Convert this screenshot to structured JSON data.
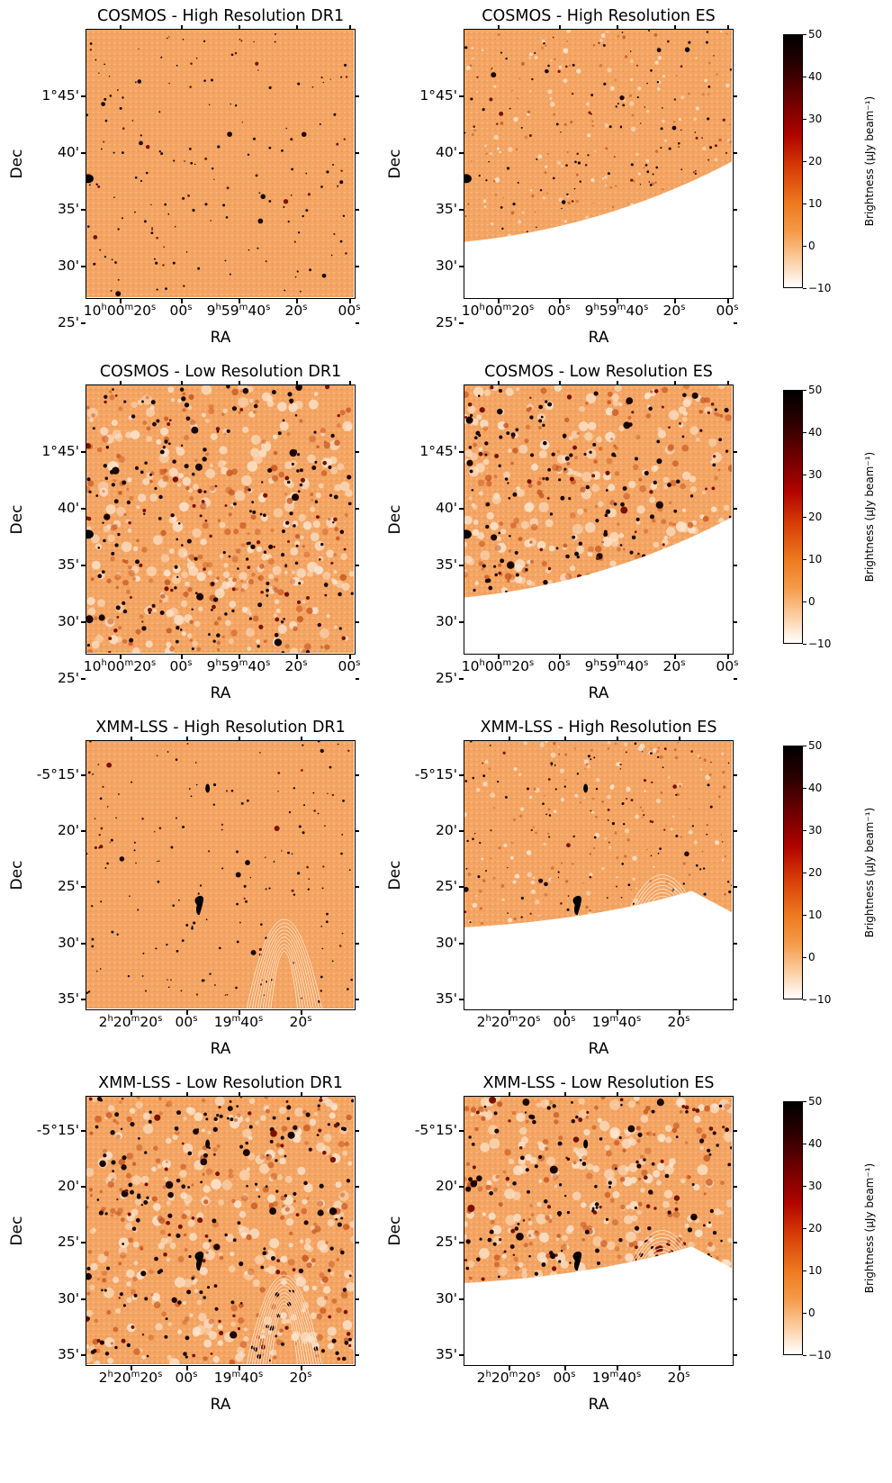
{
  "rows": [
    {
      "panels": [
        {
          "title": "COSMOS - High Resolution DR1",
          "yticks": [
            "1°45'",
            "40'",
            "35'",
            "30'",
            "25'"
          ],
          "xtick_parts": [
            [
              "10",
              "h",
              "00",
              "m",
              "20",
              "s"
            ],
            [
              "00",
              "s"
            ],
            [
              "9",
              "h",
              "59",
              "m",
              "40",
              "s"
            ],
            [
              "20",
              "s"
            ],
            [
              "00",
              "s"
            ]
          ],
          "xlabel": "RA",
          "ylabel": "Dec",
          "coverage": "full",
          "resolution": "high"
        },
        {
          "title": "COSMOS - High Resolution ES",
          "yticks": [
            "1°45'",
            "40'",
            "35'",
            "30'",
            "25'"
          ],
          "xtick_parts": [
            [
              "10",
              "h",
              "00",
              "m",
              "20",
              "s"
            ],
            [
              "00",
              "s"
            ],
            [
              "9",
              "h",
              "59",
              "m",
              "40",
              "s"
            ],
            [
              "20",
              "s"
            ],
            [
              "00",
              "s"
            ]
          ],
          "xlabel": "RA",
          "ylabel": "Dec",
          "coverage": "curved-bottom",
          "resolution": "high"
        }
      ],
      "colorbar": {
        "ticks": [
          "50",
          "40",
          "30",
          "20",
          "10",
          "0",
          "−10"
        ],
        "label": "Brightness (μJy beam⁻¹)"
      }
    },
    {
      "panels": [
        {
          "title": "COSMOS - Low Resolution DR1",
          "yticks": [
            "1°45'",
            "40'",
            "35'",
            "30'",
            "25'"
          ],
          "xtick_parts": [
            [
              "10",
              "h",
              "00",
              "m",
              "20",
              "s"
            ],
            [
              "00",
              "s"
            ],
            [
              "9",
              "h",
              "59",
              "m",
              "40",
              "s"
            ],
            [
              "20",
              "s"
            ],
            [
              "00",
              "s"
            ]
          ],
          "xlabel": "RA",
          "ylabel": "Dec",
          "coverage": "full",
          "resolution": "low"
        },
        {
          "title": "COSMOS - Low Resolution ES",
          "yticks": [
            "1°45'",
            "40'",
            "35'",
            "30'",
            "25'"
          ],
          "xtick_parts": [
            [
              "10",
              "h",
              "00",
              "m",
              "20",
              "s"
            ],
            [
              "00",
              "s"
            ],
            [
              "9",
              "h",
              "59",
              "m",
              "40",
              "s"
            ],
            [
              "20",
              "s"
            ],
            [
              "00",
              "s"
            ]
          ],
          "xlabel": "RA",
          "ylabel": "Dec",
          "coverage": "curved-bottom",
          "resolution": "low"
        }
      ],
      "colorbar": {
        "ticks": [
          "50",
          "40",
          "30",
          "20",
          "10",
          "0",
          "−10"
        ],
        "label": "Brightness (μJy beam⁻¹)"
      }
    },
    {
      "panels": [
        {
          "title": "XMM-LSS - High Resolution DR1",
          "yticks": [
            "-5°15'",
            "20'",
            "25'",
            "30'",
            "35'"
          ],
          "xtick_parts": [
            [
              "2",
              "h",
              "20",
              "m",
              "20",
              "s"
            ],
            [
              "00",
              "s"
            ],
            [
              "19",
              "m",
              "40",
              "s"
            ],
            [
              "20",
              "s"
            ]
          ],
          "xlabel": "RA",
          "ylabel": "Dec",
          "coverage": "full",
          "resolution": "high"
        },
        {
          "title": "XMM-LSS - High Resolution ES",
          "yticks": [
            "-5°15'",
            "20'",
            "25'",
            "30'",
            "35'"
          ],
          "xtick_parts": [
            [
              "2",
              "h",
              "20",
              "m",
              "20",
              "s"
            ],
            [
              "00",
              "s"
            ],
            [
              "19",
              "m",
              "40",
              "s"
            ],
            [
              "20",
              "s"
            ]
          ],
          "xlabel": "RA",
          "ylabel": "Dec",
          "coverage": "peaked-bottom",
          "resolution": "high"
        }
      ],
      "colorbar": {
        "ticks": [
          "50",
          "40",
          "30",
          "20",
          "10",
          "0",
          "−10"
        ],
        "label": "Brightness (μJy beam⁻¹)"
      }
    },
    {
      "panels": [
        {
          "title": "XMM-LSS - Low Resolution DR1",
          "yticks": [
            "-5°15'",
            "20'",
            "25'",
            "30'",
            "35'"
          ],
          "xtick_parts": [
            [
              "2",
              "h",
              "20",
              "m",
              "20",
              "s"
            ],
            [
              "00",
              "s"
            ],
            [
              "19",
              "m",
              "40",
              "s"
            ],
            [
              "20",
              "s"
            ]
          ],
          "xlabel": "RA",
          "ylabel": "Dec",
          "coverage": "full",
          "resolution": "low"
        },
        {
          "title": "XMM-LSS - Low Resolution ES",
          "yticks": [
            "-5°15'",
            "20'",
            "25'",
            "30'",
            "35'"
          ],
          "xtick_parts": [
            [
              "2",
              "h",
              "20",
              "m",
              "20",
              "s"
            ],
            [
              "00",
              "s"
            ],
            [
              "19",
              "m",
              "40",
              "s"
            ],
            [
              "20",
              "s"
            ]
          ],
          "xlabel": "RA",
          "ylabel": "Dec",
          "coverage": "peaked-bottom",
          "resolution": "low"
        }
      ],
      "colorbar": {
        "ticks": [
          "50",
          "40",
          "30",
          "20",
          "10",
          "0",
          "−10"
        ],
        "label": "Brightness (μJy beam⁻¹)"
      }
    }
  ],
  "colors": {
    "background_orange": "#f4a563",
    "light": "#ffffff",
    "dark": "#000000",
    "mid_red": "#c00000"
  }
}
